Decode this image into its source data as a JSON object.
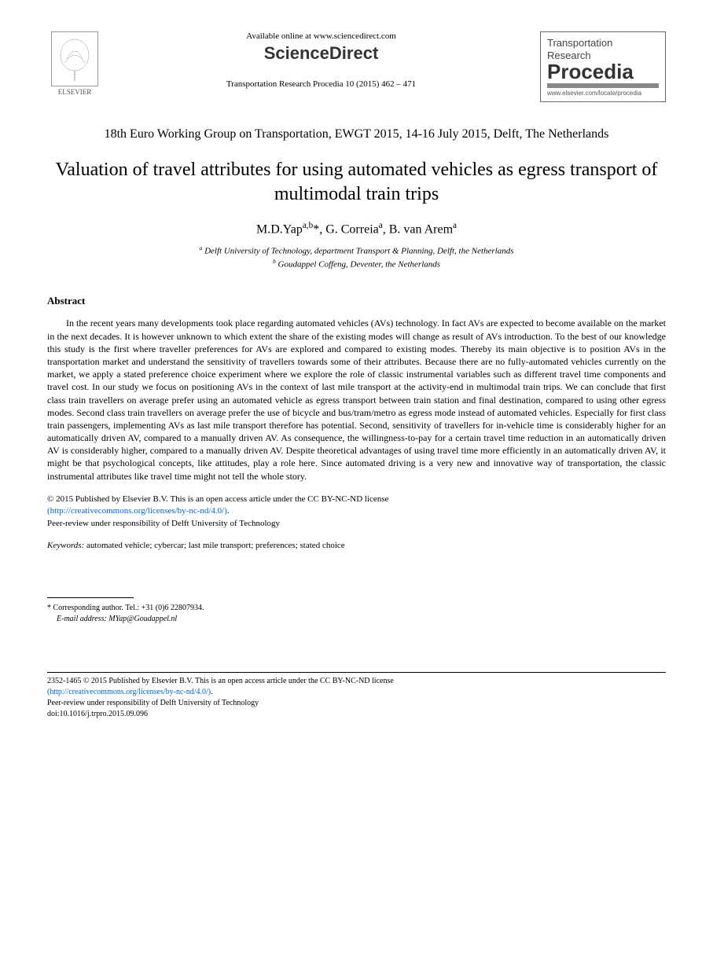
{
  "header": {
    "elsevier_label": "ELSEVIER",
    "available_online": "Available online at www.sciencedirect.com",
    "sciencedirect_science": "Science",
    "sciencedirect_direct": "Direct",
    "journal_ref": "Transportation Research Procedia 10 (2015) 462 – 471",
    "procedia_line1": "Transportation",
    "procedia_line2": "Research",
    "procedia_big": "Procedia",
    "procedia_url": "www.elsevier.com/locate/procedia"
  },
  "conference": "18th Euro Working Group on Transportation, EWGT 2015, 14-16 July 2015, Delft, The Netherlands",
  "title": "Valuation of travel attributes for using automated vehicles as egress transport of multimodal train trips",
  "authors_html": "M.D.Yap<sup>a,b</sup>*, G. Correia<sup>a</sup>, B. van Arem<sup>a</sup>",
  "affiliations": {
    "a": "Delft University of Technology, department Transport & Planning, Delft, the Netherlands",
    "b": "Goudappel Coffeng, Deventer, the Netherlands"
  },
  "abstract_heading": "Abstract",
  "abstract_body": "In the recent years many developments took place regarding automated vehicles (AVs) technology. In fact AVs are expected to become available on the market in the next decades. It is however unknown to which extent the share of the existing modes will change as result of AVs introduction. To the best of our knowledge this study is the first where traveller preferences for AVs are explored and compared to existing modes. Thereby its main objective is to position AVs in the transportation market and understand the sensitivity of travellers towards some of their attributes. Because there are no fully-automated vehicles currently on the market, we apply a stated preference choice experiment where we explore the role of classic instrumental variables such as different travel time components and travel cost. In our study we focus on positioning AVs in the context of last mile transport at the activity-end in multimodal train trips. We can conclude that first class train travellers on average prefer using an automated vehicle as egress transport between train station and final destination, compared to using other egress modes. Second class train travellers on average prefer the use of bicycle and bus/tram/metro as egress mode instead of automated vehicles. Especially for first class train passengers, implementing AVs as last mile transport therefore has potential. Second, sensitivity of travellers for in-vehicle time is considerably higher for an automatically driven AV, compared to a manually driven AV. As consequence, the willingness-to-pay for a certain travel time reduction in an automatically driven AV is considerably higher, compared to a manually driven AV. Despite theoretical advantages of using travel time more efficiently in an automatically driven AV, it might be that psychological concepts, like attitudes, play a role here. Since automated driving is a very new and innovative way of transportation, the classic instrumental attributes like travel time might not tell the whole story.",
  "license": {
    "line1": "© 2015 Published by Elsevier B.V. This is an open access article under the CC BY-NC-ND license",
    "link_text": "(http://creativecommons.org/licenses/by-nc-nd/4.0/)",
    "line3": "Peer-review under responsibility of Delft University of Technology"
  },
  "keywords_label": "Keywords:",
  "keywords_text": " automated vehicle; cybercar; last mile transport; preferences; stated choice",
  "footnote": {
    "corresponding": "* Corresponding author. Tel.: +31 (0)6 22807934.",
    "email_label": "E-mail address:",
    "email": " MYap@Goudappel.nl"
  },
  "footer": {
    "issn_line": "2352-1465 © 2015 Published by Elsevier B.V. This is an open access article under the CC BY-NC-ND license",
    "link_text": "(http://creativecommons.org/licenses/by-nc-nd/4.0/)",
    "peer_review": "Peer-review under responsibility of Delft University of Technology",
    "doi": "doi:10.1016/j.trpro.2015.09.096"
  },
  "colors": {
    "link": "#0066cc",
    "text": "#000000",
    "background": "#ffffff"
  }
}
